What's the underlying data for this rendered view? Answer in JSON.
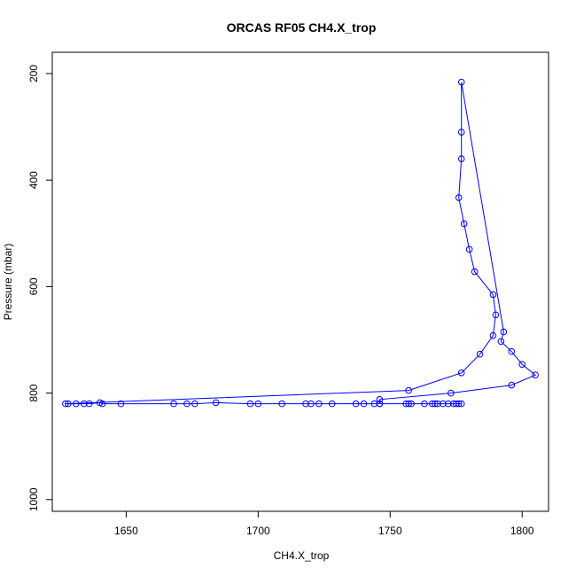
{
  "chart_data": {
    "type": "line",
    "title": "ORCAS RF05 CH4.X_trop",
    "xlabel": "CH4.X_trop",
    "ylabel": "Pressure (mbar)",
    "xlim": [
      1622,
      1810
    ],
    "ylim": [
      1022,
      160
    ],
    "y_inverted": true,
    "x_ticks": [
      1650,
      1700,
      1750,
      1800
    ],
    "y_ticks": [
      200,
      400,
      600,
      800,
      1000
    ],
    "series_color": "#0000ff",
    "marker": "open-circle",
    "grid": false,
    "points": [
      {
        "x": 1776,
        "y": 820
      },
      {
        "x": 1774,
        "y": 820
      },
      {
        "x": 1772,
        "y": 820
      },
      {
        "x": 1768,
        "y": 820
      },
      {
        "x": 1766,
        "y": 820
      },
      {
        "x": 1763,
        "y": 820
      },
      {
        "x": 1758,
        "y": 820
      },
      {
        "x": 1756,
        "y": 820
      },
      {
        "x": 1746,
        "y": 820
      },
      {
        "x": 1744,
        "y": 820
      },
      {
        "x": 1740,
        "y": 820
      },
      {
        "x": 1737,
        "y": 820
      },
      {
        "x": 1728,
        "y": 820
      },
      {
        "x": 1723,
        "y": 820
      },
      {
        "x": 1720,
        "y": 820
      },
      {
        "x": 1718,
        "y": 820
      },
      {
        "x": 1709,
        "y": 820
      },
      {
        "x": 1700,
        "y": 820
      },
      {
        "x": 1697,
        "y": 820
      },
      {
        "x": 1684,
        "y": 818
      },
      {
        "x": 1676,
        "y": 820
      },
      {
        "x": 1673,
        "y": 820
      },
      {
        "x": 1668,
        "y": 820
      },
      {
        "x": 1648,
        "y": 820
      },
      {
        "x": 1641,
        "y": 820
      },
      {
        "x": 1640,
        "y": 818
      },
      {
        "x": 1636,
        "y": 820
      },
      {
        "x": 1634,
        "y": 820
      },
      {
        "x": 1631,
        "y": 820
      },
      {
        "x": 1628,
        "y": 820
      },
      {
        "x": 1627,
        "y": 820
      },
      {
        "x": 1757,
        "y": 795
      },
      {
        "x": 1777,
        "y": 762
      },
      {
        "x": 1784,
        "y": 727
      },
      {
        "x": 1789,
        "y": 692
      },
      {
        "x": 1790,
        "y": 653
      },
      {
        "x": 1789,
        "y": 615
      },
      {
        "x": 1782,
        "y": 572
      },
      {
        "x": 1780,
        "y": 530
      },
      {
        "x": 1778,
        "y": 482
      },
      {
        "x": 1776,
        "y": 433
      },
      {
        "x": 1777,
        "y": 360
      },
      {
        "x": 1777,
        "y": 310
      },
      {
        "x": 1777,
        "y": 216
      },
      {
        "x": 1793,
        "y": 685
      },
      {
        "x": 1792,
        "y": 703
      },
      {
        "x": 1796,
        "y": 722
      },
      {
        "x": 1800,
        "y": 746
      },
      {
        "x": 1805,
        "y": 766
      },
      {
        "x": 1796,
        "y": 785
      },
      {
        "x": 1773,
        "y": 800
      },
      {
        "x": 1746,
        "y": 812
      },
      {
        "x": 1746,
        "y": 820
      },
      {
        "x": 1757,
        "y": 820
      },
      {
        "x": 1767,
        "y": 820
      },
      {
        "x": 1770,
        "y": 820
      },
      {
        "x": 1775,
        "y": 820
      },
      {
        "x": 1777,
        "y": 820
      }
    ]
  }
}
